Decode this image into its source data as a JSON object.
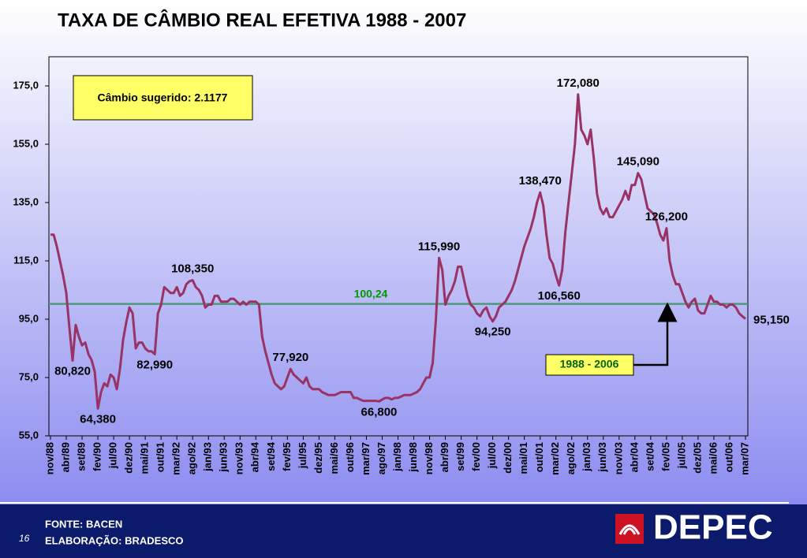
{
  "chart_data": {
    "type": "line",
    "title": "TAXA DE CÂMBIO REAL EFETIVA 1988 - 2007",
    "categories": [
      "nov/88",
      null,
      null,
      null,
      null,
      "abr/89",
      null,
      null,
      null,
      null,
      "set/89",
      null,
      null,
      null,
      null,
      "fev/90",
      null,
      null,
      null,
      null,
      "jul/90",
      null,
      null,
      null,
      null,
      "dez/90",
      null,
      null,
      null,
      null,
      "mai/91",
      null,
      null,
      null,
      null,
      "out/91",
      null,
      null,
      null,
      null,
      "mar/92",
      null,
      null,
      null,
      null,
      "ago/92",
      null,
      null,
      null,
      null,
      "jan/93",
      null,
      null,
      null,
      null,
      "jun/93",
      null,
      null,
      null,
      null,
      "nov/93",
      null,
      null,
      null,
      null,
      "abr/94",
      null,
      null,
      null,
      null,
      "set/94",
      null,
      null,
      null,
      null,
      "fev/95",
      null,
      null,
      null,
      null,
      "jul/95",
      null,
      null,
      null,
      null,
      "dez/95",
      null,
      null,
      null,
      null,
      "mai/96",
      null,
      null,
      null,
      null,
      "out/96",
      null,
      null,
      null,
      null,
      "mar/97",
      null,
      null,
      null,
      null,
      "ago/97",
      null,
      null,
      null,
      null,
      "jan/98",
      null,
      null,
      null,
      null,
      "jun/98",
      null,
      null,
      null,
      null,
      "nov/98",
      null,
      null,
      null,
      null,
      "abr/99",
      null,
      null,
      null,
      null,
      "set/99",
      null,
      null,
      null,
      null,
      "fev/00",
      null,
      null,
      null,
      null,
      "jul/00",
      null,
      null,
      null,
      null,
      "dez/00",
      null,
      null,
      null,
      null,
      "mai/01",
      null,
      null,
      null,
      null,
      "out/01",
      null,
      null,
      null,
      null,
      "mar/02",
      null,
      null,
      null,
      null,
      "ago/02",
      null,
      null,
      null,
      null,
      "jan/03",
      null,
      null,
      null,
      null,
      "jun/03",
      null,
      null,
      null,
      null,
      "nov/03",
      null,
      null,
      null,
      null,
      "abr/04",
      null,
      null,
      null,
      null,
      "set/04",
      null,
      null,
      null,
      null,
      "fev/05",
      null,
      null,
      null,
      null,
      "jul/05",
      null,
      null,
      null,
      null,
      "dez/05",
      null,
      null,
      null,
      null,
      "mai/06",
      null,
      null,
      null,
      null,
      "out/06",
      null,
      null,
      null,
      null,
      "mar/07"
    ],
    "series": [
      {
        "color": "#993366",
        "values": [
          124,
          124,
          120,
          115,
          110,
          104,
          92,
          80.82,
          93,
          89,
          86,
          87,
          83,
          81,
          77,
          64.38,
          70,
          73,
          72,
          76,
          75,
          71,
          78,
          88,
          94,
          99,
          97,
          85,
          87,
          87,
          85,
          84,
          84,
          82.99,
          97,
          100,
          106,
          105,
          104,
          104,
          106,
          103,
          104,
          107,
          108,
          108.35,
          106,
          105,
          103,
          99,
          100,
          100,
          103,
          103,
          101,
          101,
          101,
          102,
          102,
          101,
          100,
          101,
          100,
          101,
          101,
          101,
          100,
          89,
          84,
          80,
          76,
          73,
          72,
          71,
          72,
          75,
          77.92,
          76,
          75,
          74,
          73,
          75,
          72,
          71,
          71,
          71,
          70,
          69.5,
          69,
          69,
          69,
          69.5,
          70,
          70,
          70,
          70,
          68,
          68,
          67.5,
          67,
          67,
          67,
          67,
          67,
          66.8,
          67.5,
          68,
          68,
          67.5,
          68,
          68,
          68.5,
          69,
          69,
          69,
          69.5,
          70,
          71,
          73,
          75,
          75,
          80,
          95,
          115.99,
          112,
          100,
          103,
          105,
          108,
          113,
          113,
          108,
          103,
          100,
          99,
          97,
          96,
          98,
          99,
          96,
          94.25,
          96,
          99,
          100,
          101,
          103,
          105,
          108,
          112,
          116,
          120,
          123,
          126,
          130,
          135,
          138.47,
          134,
          124,
          116,
          114,
          110,
          106.56,
          112,
          125,
          135,
          145,
          155,
          172.08,
          160,
          158,
          155,
          160,
          150,
          138,
          133,
          131,
          133,
          130,
          130,
          132,
          134,
          136,
          139,
          136,
          141,
          141,
          145.09,
          143,
          138,
          133,
          132,
          131,
          128,
          124,
          122,
          126.2,
          115,
          110,
          107,
          107,
          104,
          101,
          99,
          101,
          102,
          98,
          97,
          97,
          100,
          103,
          101,
          101,
          100,
          100,
          99,
          100,
          100,
          99,
          97,
          96,
          95.15
        ],
        "value_labels": [
          null,
          null,
          null,
          null,
          null,
          null,
          null,
          "80,820",
          null,
          null,
          null,
          null,
          null,
          null,
          null,
          "64,380",
          null,
          null,
          null,
          null,
          null,
          null,
          null,
          null,
          null,
          null,
          null,
          null,
          null,
          null,
          null,
          null,
          null,
          "82,990",
          null,
          null,
          null,
          null,
          null,
          null,
          null,
          null,
          null,
          null,
          null,
          "108,350",
          null,
          null,
          null,
          null,
          null,
          null,
          null,
          null,
          null,
          null,
          null,
          null,
          null,
          null,
          null,
          null,
          null,
          null,
          null,
          null,
          null,
          null,
          null,
          null,
          null,
          null,
          null,
          null,
          null,
          null,
          "77,920",
          null,
          null,
          null,
          null,
          null,
          null,
          null,
          null,
          null,
          null,
          null,
          null,
          null,
          null,
          null,
          null,
          null,
          null,
          null,
          null,
          null,
          null,
          null,
          null,
          null,
          null,
          null,
          "66,800",
          null,
          null,
          null,
          null,
          null,
          null,
          null,
          null,
          null,
          null,
          null,
          null,
          null,
          null,
          null,
          null,
          null,
          null,
          "115,990",
          null,
          null,
          null,
          null,
          null,
          null,
          null,
          null,
          null,
          null,
          null,
          null,
          null,
          null,
          null,
          null,
          "94,250",
          null,
          null,
          null,
          null,
          null,
          null,
          null,
          null,
          null,
          null,
          null,
          null,
          null,
          null,
          "138,470",
          null,
          null,
          null,
          null,
          null,
          "106,560",
          null,
          null,
          null,
          null,
          null,
          "172,080",
          null,
          null,
          null,
          null,
          null,
          null,
          null,
          null,
          null,
          null,
          null,
          null,
          null,
          null,
          null,
          null,
          null,
          null,
          "145,090",
          null,
          null,
          null,
          null,
          null,
          null,
          null,
          null,
          "126,200",
          null,
          null,
          null,
          null,
          null,
          null,
          null,
          null,
          null,
          null,
          null,
          null,
          null,
          null,
          null,
          null,
          null,
          null,
          null,
          null,
          null,
          null,
          null,
          null,
          "95,150"
        ]
      }
    ],
    "ylim": [
      55,
      185
    ],
    "yticks": [
      {
        "value": 55,
        "label": "55,0"
      },
      {
        "value": 75,
        "label": "75,0"
      },
      {
        "value": 95,
        "label": "95,0"
      },
      {
        "value": 115,
        "label": "115,0"
      },
      {
        "value": 135,
        "label": "135,0"
      },
      {
        "value": 155,
        "label": "155,0"
      },
      {
        "value": 175,
        "label": "175,0"
      }
    ],
    "reference_line": {
      "value": 100.24,
      "label": "100,24",
      "color": "#4a9a7a"
    },
    "annotations": [
      "Câmbio sugerido: 2.1177",
      "1988 - 2006"
    ]
  },
  "footer": {
    "source": "FONTE: BACEN",
    "credit": "ELABORAÇÃO: BRADESCO",
    "page": "16",
    "logo": "DEPEC"
  }
}
